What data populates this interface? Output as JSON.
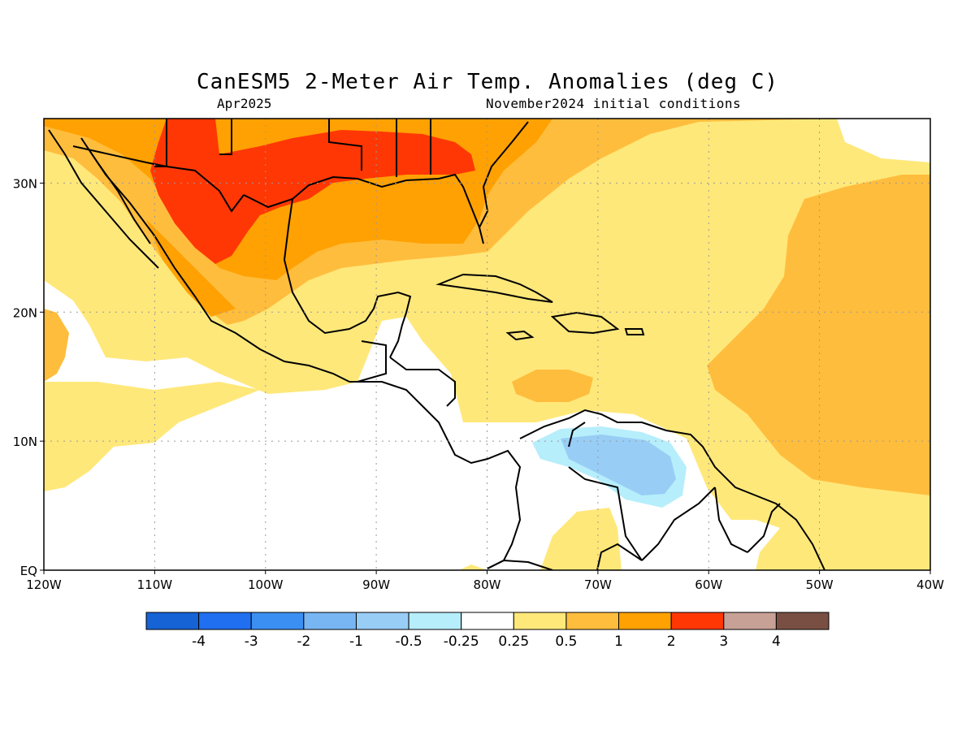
{
  "title": "CanESM5 2-Meter Air Temp. Anomalies (deg C)",
  "subtitle_left": "Apr2025",
  "subtitle_right": "November2024 initial conditions",
  "map": {
    "lon_range": [
      -120,
      -40
    ],
    "lat_range": [
      0,
      35
    ],
    "gridlines": "dotted",
    "x_ticks": [
      {
        "lon": -120,
        "label": "120W"
      },
      {
        "lon": -110,
        "label": "110W"
      },
      {
        "lon": -100,
        "label": "100W"
      },
      {
        "lon": -90,
        "label": "90W"
      },
      {
        "lon": -80,
        "label": "80W"
      },
      {
        "lon": -70,
        "label": "70W"
      },
      {
        "lon": -60,
        "label": "60W"
      },
      {
        "lon": -50,
        "label": "50W"
      },
      {
        "lon": -40,
        "label": "40W"
      }
    ],
    "y_ticks": [
      {
        "lat": 0,
        "label": "EQ"
      },
      {
        "lat": 10,
        "label": "10N"
      },
      {
        "lat": 20,
        "label": "20N"
      },
      {
        "lat": 30,
        "label": "30N"
      }
    ]
  },
  "colorbar": {
    "colors": [
      "#1663d6",
      "#1f6ff0",
      "#3b8ff2",
      "#78b6f3",
      "#98cdf6",
      "#b6eefb",
      "#ffffff",
      "#ffe87a",
      "#ffbd3d",
      "#ffa102",
      "#ff3705",
      "#c8a196",
      "#7a4f43"
    ],
    "labels": [
      "-4",
      "-3",
      "-2",
      "-1",
      "-0.5",
      "-0.25",
      "0.25",
      "0.5",
      "1",
      "2",
      "3",
      "4"
    ]
  },
  "colors": {
    "neg_025": "#b6eefb",
    "neg_05": "#98cdf6",
    "pos_025": "#ffe87a",
    "pos_05": "#ffbd3d",
    "pos_1": "#ffa102",
    "pos_2": "#ff3705",
    "pos_3": "#c8a196"
  }
}
